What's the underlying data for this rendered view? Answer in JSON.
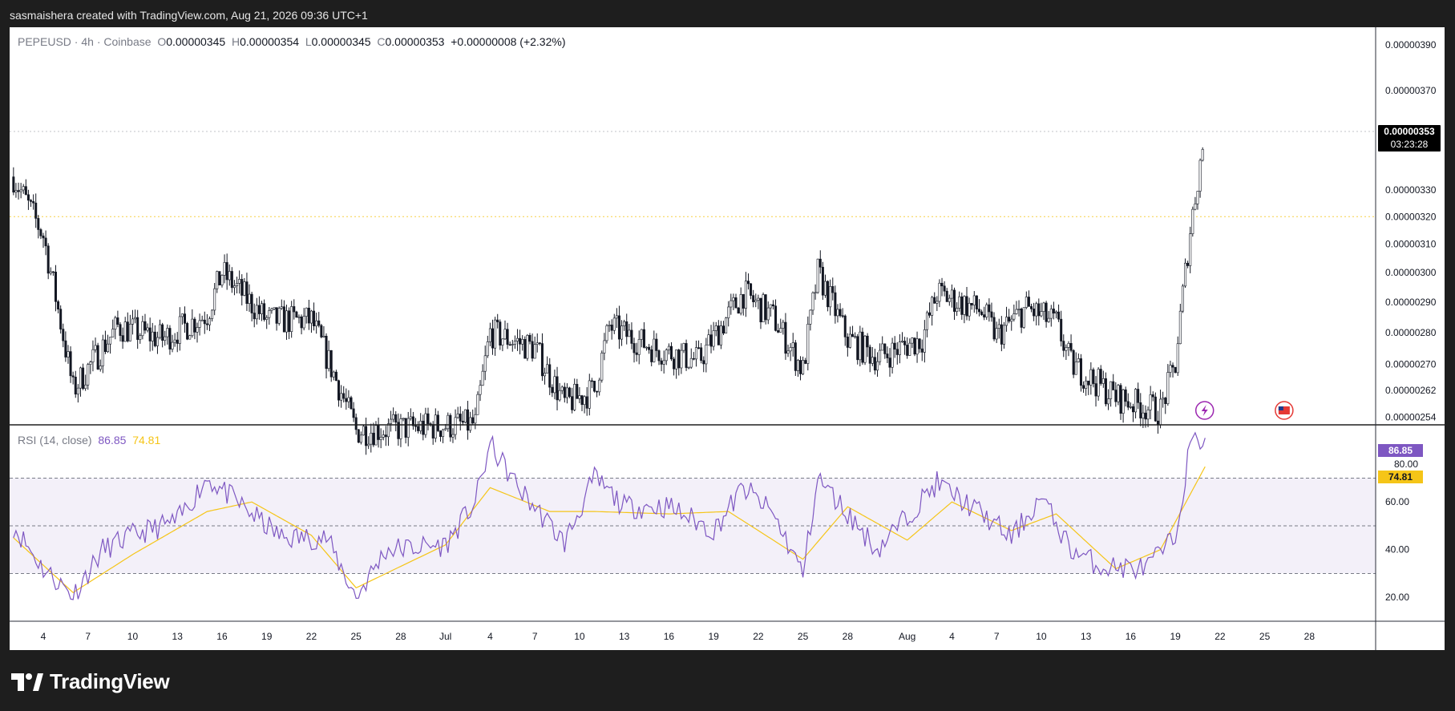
{
  "header": {
    "title": "sasmaishera created with TradingView.com, Aug 21, 2026 09:36 UTC+1"
  },
  "legend": {
    "symbol": "PEPEUSD · 4h · Coinbase",
    "o_label": "O",
    "o": "0.00000345",
    "h_label": "H",
    "h": "0.00000354",
    "l_label": "L",
    "l": "0.00000345",
    "c_label": "C",
    "c": "0.00000353",
    "change": "+0.00000008 (+2.32%)"
  },
  "rsi_legend": {
    "label": "RSI (14, close)",
    "rsi": "86.85",
    "ma": "74.81"
  },
  "price_tag": {
    "price": "0.00000353",
    "countdown": "03:23:28"
  },
  "rsi_tags": {
    "rsi": "86.85",
    "level80": "80.00",
    "ma": "74.81"
  },
  "footer": {
    "brand": "TradingView"
  },
  "colors": {
    "up": "#26a69a",
    "down": "#131722",
    "candle": "#131722",
    "rsi": "#7e57c2",
    "rsi_ma": "#f5c518",
    "band": "#7e57c2",
    "bg": "#ffffff",
    "frame": "#1e1e1e"
  },
  "icons": [
    "lightning-event-icon",
    "us-flag-event-icon",
    "tradingview-logo-icon"
  ],
  "chart_data": [
    {
      "type": "candlestick",
      "symbol": "PEPEUSD",
      "interval": "4h",
      "exchange": "Coinbase",
      "yscale": "log",
      "ylim": [
        2.52e-06,
        3.98e-06
      ],
      "y_ticks": [
        "0.00000390",
        "0.00000370",
        "0.00000330",
        "0.00000320",
        "0.00000310",
        "0.00000300",
        "0.00000290",
        "0.00000280",
        "0.00000270",
        "0.00000262",
        "0.00000254"
      ],
      "x_ticks": [
        "4",
        "7",
        "10",
        "13",
        "16",
        "19",
        "22",
        "25",
        "28",
        "Jul",
        "4",
        "7",
        "10",
        "13",
        "16",
        "19",
        "22",
        "25",
        "28",
        "Aug",
        "4",
        "7",
        "10",
        "13",
        "16",
        "19",
        "22",
        "25",
        "28"
      ],
      "horizontal_lines": [
        {
          "value": 3.53e-06,
          "style": "dotted"
        },
        {
          "value": 3.2e-06,
          "style": "dotted",
          "color": "#f5c518"
        }
      ],
      "last_price": 3.53e-06,
      "last_ohlc": {
        "o": 3.45e-06,
        "h": 3.54e-06,
        "l": 3.45e-06,
        "c": 3.53e-06
      },
      "approx_path": [
        {
          "date": "Jun 2",
          "price": 3.35e-06
        },
        {
          "date": "Jun 4",
          "price": 3.13e-06
        },
        {
          "date": "Jun 6",
          "price": 2.62e-06
        },
        {
          "date": "Jun 9",
          "price": 2.82e-06
        },
        {
          "date": "Jun 12",
          "price": 2.78e-06
        },
        {
          "date": "Jun 15",
          "price": 2.86e-06
        },
        {
          "date": "Jun 16",
          "price": 3e-06
        },
        {
          "date": "Jun 19",
          "price": 2.84e-06
        },
        {
          "date": "Jun 22",
          "price": 2.84e-06
        },
        {
          "date": "Jun 25",
          "price": 2.5e-06
        },
        {
          "date": "Jul 3",
          "price": 2.52e-06
        },
        {
          "date": "Jul 4",
          "price": 2.8e-06
        },
        {
          "date": "Jul 7",
          "price": 2.75e-06
        },
        {
          "date": "Jul 9",
          "price": 2.58e-06
        },
        {
          "date": "Jul 11",
          "price": 2.62e-06
        },
        {
          "date": "Jul 12",
          "price": 2.82e-06
        },
        {
          "date": "Jul 15",
          "price": 2.75e-06
        },
        {
          "date": "Jul 18",
          "price": 2.71e-06
        },
        {
          "date": "Jul 21",
          "price": 2.93e-06
        },
        {
          "date": "Jul 23",
          "price": 2.85e-06
        },
        {
          "date": "Jul 25",
          "price": 2.68e-06
        },
        {
          "date": "Jul 26",
          "price": 3e-06
        },
        {
          "date": "Jul 28",
          "price": 2.78e-06
        },
        {
          "date": "Jul 30",
          "price": 2.72e-06
        },
        {
          "date": "Aug 2",
          "price": 2.78e-06
        },
        {
          "date": "Aug 3",
          "price": 2.93e-06
        },
        {
          "date": "Aug 6",
          "price": 2.87e-06
        },
        {
          "date": "Aug 7",
          "price": 2.79e-06
        },
        {
          "date": "Aug 9",
          "price": 2.88e-06
        },
        {
          "date": "Aug 11",
          "price": 2.83e-06
        },
        {
          "date": "Aug 12",
          "price": 2.7e-06
        },
        {
          "date": "Aug 15",
          "price": 2.6e-06
        },
        {
          "date": "Aug 17",
          "price": 2.57e-06
        },
        {
          "date": "Aug 18",
          "price": 2.56e-06
        },
        {
          "date": "Aug 19",
          "price": 2.7e-06
        },
        {
          "date": "Aug 20",
          "price": 3.15e-06
        },
        {
          "date": "Aug 21",
          "price": 3.53e-06
        }
      ]
    },
    {
      "type": "line",
      "name": "RSI (14, close)",
      "ylim": [
        10,
        92
      ],
      "y_ticks": [
        "86.85",
        "80.00",
        "74.81",
        "60.00",
        "40.00",
        "20.00"
      ],
      "bands": {
        "upper": 70,
        "middle": 50,
        "lower": 30
      },
      "rsi_last": 86.85,
      "ma_last": 74.81,
      "approx_rsi": [
        {
          "date": "Jun 2",
          "value": 50
        },
        {
          "date": "Jun 4",
          "value": 32
        },
        {
          "date": "Jun 6",
          "value": 21
        },
        {
          "date": "Jun 8",
          "value": 40
        },
        {
          "date": "Jun 10",
          "value": 46
        },
        {
          "date": "Jun 13",
          "value": 52
        },
        {
          "date": "Jun 15",
          "value": 70
        },
        {
          "date": "Jun 17",
          "value": 60
        },
        {
          "date": "Jun 20",
          "value": 45
        },
        {
          "date": "Jun 23",
          "value": 45
        },
        {
          "date": "Jun 25",
          "value": 20
        },
        {
          "date": "Jun 27",
          "value": 40
        },
        {
          "date": "Jul 1",
          "value": 42
        },
        {
          "date": "Jul 3",
          "value": 60
        },
        {
          "date": "Jul 4",
          "value": 84
        },
        {
          "date": "Jul 6",
          "value": 65
        },
        {
          "date": "Jul 9",
          "value": 43
        },
        {
          "date": "Jul 11",
          "value": 70
        },
        {
          "date": "Jul 13",
          "value": 58
        },
        {
          "date": "Jul 16",
          "value": 58
        },
        {
          "date": "Jul 19",
          "value": 48
        },
        {
          "date": "Jul 21",
          "value": 66
        },
        {
          "date": "Jul 23",
          "value": 55
        },
        {
          "date": "Jul 25",
          "value": 30
        },
        {
          "date": "Jul 26",
          "value": 70
        },
        {
          "date": "Jul 28",
          "value": 55
        },
        {
          "date": "Jul 30",
          "value": 40
        },
        {
          "date": "Aug 3",
          "value": 68
        },
        {
          "date": "Aug 6",
          "value": 55
        },
        {
          "date": "Aug 8",
          "value": 45
        },
        {
          "date": "Aug 10",
          "value": 62
        },
        {
          "date": "Aug 12",
          "value": 40
        },
        {
          "date": "Aug 14",
          "value": 33
        },
        {
          "date": "Aug 17",
          "value": 32
        },
        {
          "date": "Aug 19",
          "value": 45
        },
        {
          "date": "Aug 20",
          "value": 84
        },
        {
          "date": "Aug 21",
          "value": 86.85
        }
      ],
      "approx_ma": [
        {
          "date": "Jun 2",
          "value": 45
        },
        {
          "date": "Jun 6",
          "value": 22
        },
        {
          "date": "Jun 10",
          "value": 38
        },
        {
          "date": "Jun 15",
          "value": 56
        },
        {
          "date": "Jun 18",
          "value": 60
        },
        {
          "date": "Jun 22",
          "value": 46
        },
        {
          "date": "Jun 25",
          "value": 24
        },
        {
          "date": "Jul 1",
          "value": 42
        },
        {
          "date": "Jul 4",
          "value": 66
        },
        {
          "date": "Jul 8",
          "value": 56
        },
        {
          "date": "Jul 11",
          "value": 56
        },
        {
          "date": "Jul 16",
          "value": 55
        },
        {
          "date": "Jul 20",
          "value": 56
        },
        {
          "date": "Jul 25",
          "value": 36
        },
        {
          "date": "Jul 28",
          "value": 58
        },
        {
          "date": "Aug 1",
          "value": 44
        },
        {
          "date": "Aug 4",
          "value": 60
        },
        {
          "date": "Aug 8",
          "value": 48
        },
        {
          "date": "Aug 11",
          "value": 55
        },
        {
          "date": "Aug 15",
          "value": 32
        },
        {
          "date": "Aug 18",
          "value": 40
        },
        {
          "date": "Aug 21",
          "value": 74.81
        }
      ]
    }
  ]
}
